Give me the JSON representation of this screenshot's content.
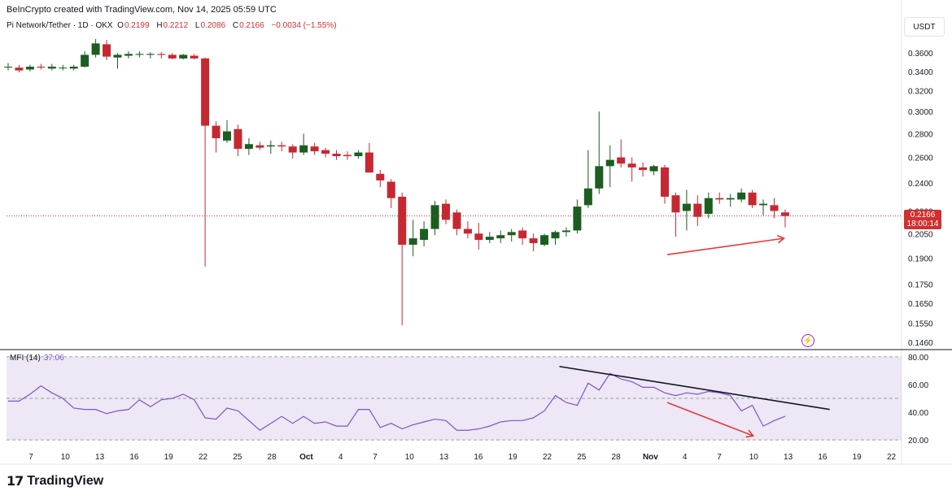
{
  "header": {
    "credit": "BeInCrypto created with TradingView.com, Nov 14, 2025 05:59 UTC",
    "symbol": "Pi Network/Tether · 1D · OKX",
    "o_label": "O",
    "o_value": "0.2199",
    "h_label": "H",
    "h_value": "0.2212",
    "l_label": "L",
    "l_value": "0.2086",
    "c_label": "C",
    "c_value": "0.2166",
    "change": "−0.0034 (−1.55%)",
    "currency": "USDT"
  },
  "last_price": {
    "value": "0.2166",
    "countdown": "18:00:14"
  },
  "mfi": {
    "label": "MFI (14)",
    "value": "37.06",
    "levels": [
      80,
      50,
      20
    ]
  },
  "footer": {
    "logo_mark": "17",
    "brand": "TradingView"
  },
  "colors": {
    "up": "#1b5e20",
    "down": "#c62832",
    "mfi_line": "#7e57c2",
    "mfi_fill": "#ede7f6",
    "arrow": "#e53935",
    "trendline": "#131722"
  },
  "icons": {
    "bolt": "lightning-icon"
  },
  "chart_data": [
    {
      "type": "candlestick",
      "title": "Pi Network/Tether · 1D · OKX",
      "y_scale": "log",
      "ylim": [
        0.14,
        0.375
      ],
      "y_ticks": [
        0.36,
        0.34,
        0.32,
        0.3,
        0.28,
        0.26,
        0.24,
        0.22,
        0.205,
        0.19,
        0.175,
        0.165,
        0.155,
        0.146
      ],
      "y_tick_labels": [
        "0.3600",
        "0.3400",
        "0.3200",
        "0.3000",
        "0.2800",
        "0.2600",
        "0.2400",
        "0.2200",
        "0.2050",
        "0.1900",
        "0.1750",
        "0.1650",
        "0.1550",
        "0.1460"
      ],
      "x_tick_labels": [
        "7",
        "10",
        "13",
        "16",
        "19",
        "22",
        "25",
        "28",
        "Oct",
        "4",
        "7",
        "10",
        "13",
        "16",
        "19",
        "22",
        "25",
        "28",
        "Nov",
        "4",
        "7",
        "10",
        "13",
        "16",
        "19",
        "22"
      ],
      "candles": [
        {
          "o": 0.345,
          "h": 0.349,
          "l": 0.341,
          "c": 0.345
        },
        {
          "o": 0.344,
          "h": 0.347,
          "l": 0.339,
          "c": 0.341
        },
        {
          "o": 0.342,
          "h": 0.347,
          "l": 0.34,
          "c": 0.345
        },
        {
          "o": 0.345,
          "h": 0.348,
          "l": 0.342,
          "c": 0.344
        },
        {
          "o": 0.343,
          "h": 0.348,
          "l": 0.341,
          "c": 0.345
        },
        {
          "o": 0.344,
          "h": 0.347,
          "l": 0.341,
          "c": 0.344
        },
        {
          "o": 0.343,
          "h": 0.347,
          "l": 0.341,
          "c": 0.345
        },
        {
          "o": 0.345,
          "h": 0.362,
          "l": 0.344,
          "c": 0.358
        },
        {
          "o": 0.358,
          "h": 0.376,
          "l": 0.355,
          "c": 0.371
        },
        {
          "o": 0.37,
          "h": 0.375,
          "l": 0.352,
          "c": 0.356
        },
        {
          "o": 0.355,
          "h": 0.36,
          "l": 0.343,
          "c": 0.358
        },
        {
          "o": 0.357,
          "h": 0.362,
          "l": 0.354,
          "c": 0.359
        },
        {
          "o": 0.358,
          "h": 0.362,
          "l": 0.355,
          "c": 0.359
        },
        {
          "o": 0.358,
          "h": 0.361,
          "l": 0.354,
          "c": 0.359
        },
        {
          "o": 0.359,
          "h": 0.361,
          "l": 0.354,
          "c": 0.358
        },
        {
          "o": 0.358,
          "h": 0.36,
          "l": 0.353,
          "c": 0.354
        },
        {
          "o": 0.354,
          "h": 0.359,
          "l": 0.353,
          "c": 0.358
        },
        {
          "o": 0.357,
          "h": 0.359,
          "l": 0.353,
          "c": 0.354
        },
        {
          "o": 0.354,
          "h": 0.355,
          "l": 0.185,
          "c": 0.287
        },
        {
          "o": 0.287,
          "h": 0.291,
          "l": 0.264,
          "c": 0.276
        },
        {
          "o": 0.274,
          "h": 0.292,
          "l": 0.272,
          "c": 0.282
        },
        {
          "o": 0.284,
          "h": 0.288,
          "l": 0.261,
          "c": 0.267
        },
        {
          "o": 0.267,
          "h": 0.276,
          "l": 0.262,
          "c": 0.271
        },
        {
          "o": 0.27,
          "h": 0.273,
          "l": 0.266,
          "c": 0.268
        },
        {
          "o": 0.269,
          "h": 0.274,
          "l": 0.263,
          "c": 0.27
        },
        {
          "o": 0.27,
          "h": 0.273,
          "l": 0.265,
          "c": 0.269
        },
        {
          "o": 0.269,
          "h": 0.271,
          "l": 0.259,
          "c": 0.264
        },
        {
          "o": 0.264,
          "h": 0.28,
          "l": 0.262,
          "c": 0.27
        },
        {
          "o": 0.269,
          "h": 0.272,
          "l": 0.262,
          "c": 0.265
        },
        {
          "o": 0.266,
          "h": 0.268,
          "l": 0.26,
          "c": 0.263
        },
        {
          "o": 0.263,
          "h": 0.266,
          "l": 0.258,
          "c": 0.261
        },
        {
          "o": 0.262,
          "h": 0.265,
          "l": 0.258,
          "c": 0.261
        },
        {
          "o": 0.261,
          "h": 0.266,
          "l": 0.259,
          "c": 0.264
        },
        {
          "o": 0.264,
          "h": 0.272,
          "l": 0.248,
          "c": 0.248
        },
        {
          "o": 0.247,
          "h": 0.25,
          "l": 0.237,
          "c": 0.242
        },
        {
          "o": 0.241,
          "h": 0.243,
          "l": 0.222,
          "c": 0.229
        },
        {
          "o": 0.23,
          "h": 0.233,
          "l": 0.154,
          "c": 0.198
        },
        {
          "o": 0.198,
          "h": 0.214,
          "l": 0.191,
          "c": 0.202
        },
        {
          "o": 0.201,
          "h": 0.213,
          "l": 0.197,
          "c": 0.208
        },
        {
          "o": 0.208,
          "h": 0.227,
          "l": 0.204,
          "c": 0.224
        },
        {
          "o": 0.225,
          "h": 0.228,
          "l": 0.211,
          "c": 0.214
        },
        {
          "o": 0.219,
          "h": 0.221,
          "l": 0.204,
          "c": 0.208
        },
        {
          "o": 0.208,
          "h": 0.213,
          "l": 0.202,
          "c": 0.205
        },
        {
          "o": 0.205,
          "h": 0.212,
          "l": 0.195,
          "c": 0.201
        },
        {
          "o": 0.201,
          "h": 0.206,
          "l": 0.199,
          "c": 0.203
        },
        {
          "o": 0.202,
          "h": 0.207,
          "l": 0.199,
          "c": 0.204
        },
        {
          "o": 0.204,
          "h": 0.208,
          "l": 0.2,
          "c": 0.206
        },
        {
          "o": 0.207,
          "h": 0.209,
          "l": 0.198,
          "c": 0.202
        },
        {
          "o": 0.202,
          "h": 0.205,
          "l": 0.194,
          "c": 0.199
        },
        {
          "o": 0.198,
          "h": 0.205,
          "l": 0.197,
          "c": 0.204
        },
        {
          "o": 0.202,
          "h": 0.207,
          "l": 0.198,
          "c": 0.206
        },
        {
          "o": 0.206,
          "h": 0.209,
          "l": 0.203,
          "c": 0.207
        },
        {
          "o": 0.207,
          "h": 0.228,
          "l": 0.205,
          "c": 0.223
        },
        {
          "o": 0.224,
          "h": 0.266,
          "l": 0.222,
          "c": 0.236
        },
        {
          "o": 0.236,
          "h": 0.3,
          "l": 0.232,
          "c": 0.253
        },
        {
          "o": 0.253,
          "h": 0.27,
          "l": 0.237,
          "c": 0.258
        },
        {
          "o": 0.26,
          "h": 0.275,
          "l": 0.252,
          "c": 0.255
        },
        {
          "o": 0.255,
          "h": 0.26,
          "l": 0.241,
          "c": 0.252
        },
        {
          "o": 0.252,
          "h": 0.256,
          "l": 0.245,
          "c": 0.25
        },
        {
          "o": 0.249,
          "h": 0.254,
          "l": 0.246,
          "c": 0.253
        },
        {
          "o": 0.252,
          "h": 0.254,
          "l": 0.225,
          "c": 0.23
        },
        {
          "o": 0.231,
          "h": 0.233,
          "l": 0.203,
          "c": 0.219
        },
        {
          "o": 0.22,
          "h": 0.235,
          "l": 0.207,
          "c": 0.225
        },
        {
          "o": 0.225,
          "h": 0.231,
          "l": 0.21,
          "c": 0.216
        },
        {
          "o": 0.218,
          "h": 0.233,
          "l": 0.215,
          "c": 0.229
        },
        {
          "o": 0.229,
          "h": 0.233,
          "l": 0.225,
          "c": 0.228
        },
        {
          "o": 0.228,
          "h": 0.232,
          "l": 0.223,
          "c": 0.229
        },
        {
          "o": 0.228,
          "h": 0.236,
          "l": 0.226,
          "c": 0.233
        },
        {
          "o": 0.233,
          "h": 0.235,
          "l": 0.222,
          "c": 0.224
        },
        {
          "o": 0.224,
          "h": 0.228,
          "l": 0.217,
          "c": 0.225
        },
        {
          "o": 0.224,
          "h": 0.229,
          "l": 0.215,
          "c": 0.22
        },
        {
          "o": 0.219,
          "h": 0.221,
          "l": 0.209,
          "c": 0.2166
        }
      ],
      "last_price": 0.2166,
      "annotations": [
        {
          "type": "arrow",
          "direction": "up",
          "from": {
            "bar": 60,
            "price": 0.192
          },
          "to": {
            "bar": 70,
            "price": 0.202
          }
        }
      ]
    },
    {
      "type": "line",
      "title": "MFI (14)",
      "ylim": [
        16,
        84
      ],
      "y_ticks": [
        80,
        60,
        40,
        20
      ],
      "y_tick_labels": [
        "80.00",
        "60.00",
        "40.00",
        "20.00"
      ],
      "levels": [
        80,
        50,
        20
      ],
      "series": [
        {
          "name": "MFI (14)",
          "values": [
            48,
            48,
            53,
            59,
            54,
            50,
            43,
            42,
            42,
            39,
            41,
            42,
            49,
            44,
            49,
            50,
            53,
            49,
            36,
            35,
            43,
            41,
            34,
            27,
            32,
            37,
            32,
            37,
            32,
            33,
            30,
            30,
            42,
            42,
            29,
            32,
            28,
            31,
            33,
            35,
            34,
            27,
            27,
            28,
            30,
            33,
            34,
            34,
            36,
            41,
            52,
            47,
            45,
            61,
            56,
            68,
            64,
            62,
            58,
            58,
            54,
            52,
            54,
            53,
            55,
            54,
            52,
            41,
            45,
            30,
            34,
            37.06
          ]
        }
      ],
      "annotations": [
        {
          "type": "trendline",
          "from": {
            "bar": 50,
            "value": 73
          },
          "to": {
            "bar": 75,
            "value": 42
          }
        },
        {
          "type": "arrow",
          "direction": "down",
          "from": {
            "bar": 60,
            "value": 47
          },
          "to": {
            "bar": 68,
            "value": 23
          }
        }
      ]
    }
  ]
}
